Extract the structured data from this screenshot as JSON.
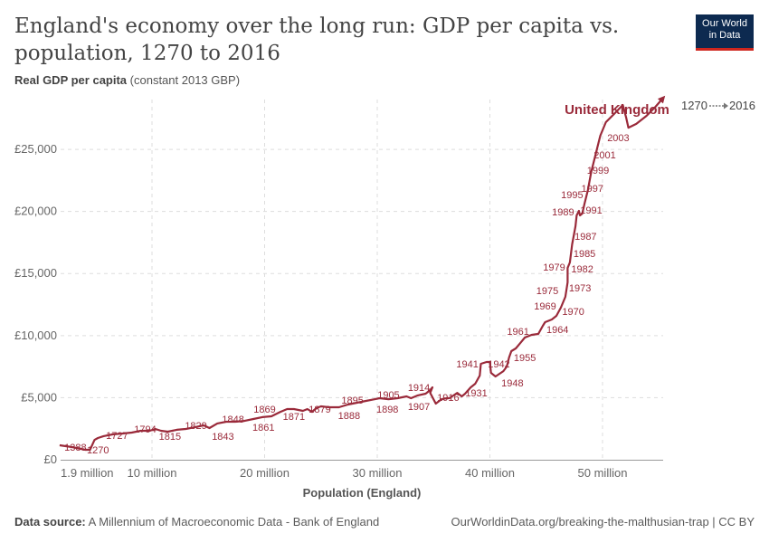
{
  "title": "England's economy over the long run: GDP per capita vs. population, 1270 to 2016",
  "subtitle_bold": "Real GDP per capita",
  "subtitle_rest": " (constant 2013 GBP)",
  "logo_line1": "Our World",
  "logo_line2": "in Data",
  "footer": {
    "source_label": "Data source:",
    "source": " A Millennium of Macroeconomic Data - Bank of England",
    "url": "OurWorldinData.org/breaking-the-malthusian-trap | CC BY"
  },
  "legend": {
    "start": "1270",
    "end": "2016"
  },
  "chart_data": {
    "type": "line",
    "title": "England's economy over the long run: GDP per capita vs. population, 1270 to 2016",
    "xlabel": "Population (England)",
    "ylabel": "Real GDP per capita (constant 2013 GBP)",
    "xlim": [
      1.9,
      56
    ],
    "ylim": [
      0,
      28000
    ],
    "x_ticks": [
      {
        "v": 1.9,
        "label": "1.9 million"
      },
      {
        "v": 10,
        "label": "10 million"
      },
      {
        "v": 20,
        "label": "20 million"
      },
      {
        "v": 30,
        "label": "30 million"
      },
      {
        "v": 40,
        "label": "40 million"
      },
      {
        "v": 50,
        "label": "50 million"
      }
    ],
    "y_ticks": [
      {
        "v": 0,
        "label": "£0"
      },
      {
        "v": 5000,
        "label": "£5,000"
      },
      {
        "v": 10000,
        "label": "£10,000"
      },
      {
        "v": 15000,
        "label": "£15,000"
      },
      {
        "v": 20000,
        "label": "£20,000"
      },
      {
        "v": 25000,
        "label": "£25,000"
      }
    ],
    "grid": true,
    "series": [
      {
        "name": "United Kingdom",
        "color": "#9a2a3a",
        "points": [
          [
            1.8,
            1170
          ],
          [
            2.9,
            1020
          ],
          [
            4.1,
            800
          ],
          [
            4.5,
            800
          ],
          [
            4.9,
            1600
          ],
          [
            5.2,
            1750
          ],
          [
            5.7,
            1900
          ],
          [
            6.5,
            2040
          ],
          [
            7.3,
            2110
          ],
          [
            8.2,
            2190
          ],
          [
            9.0,
            2330
          ],
          [
            9.8,
            2330
          ],
          [
            10.3,
            2480
          ],
          [
            10.8,
            2330
          ],
          [
            11.4,
            2260
          ],
          [
            12.2,
            2410
          ],
          [
            13.0,
            2480
          ],
          [
            13.8,
            2620
          ],
          [
            14.6,
            2770
          ],
          [
            15.1,
            2550
          ],
          [
            15.8,
            2920
          ],
          [
            16.6,
            3060
          ],
          [
            17.4,
            3060
          ],
          [
            18.2,
            3130
          ],
          [
            19.0,
            3280
          ],
          [
            19.8,
            3430
          ],
          [
            20.6,
            3500
          ],
          [
            21.4,
            3860
          ],
          [
            22.0,
            4080
          ],
          [
            22.6,
            4080
          ],
          [
            23.4,
            3940
          ],
          [
            23.8,
            4080
          ],
          [
            24.2,
            3860
          ],
          [
            24.6,
            4160
          ],
          [
            25.0,
            4300
          ],
          [
            25.7,
            4230
          ],
          [
            26.6,
            4230
          ],
          [
            27.4,
            4450
          ],
          [
            28.2,
            4590
          ],
          [
            29.0,
            4740
          ],
          [
            29.8,
            4880
          ],
          [
            30.2,
            4960
          ],
          [
            31.0,
            4880
          ],
          [
            31.8,
            4960
          ],
          [
            32.6,
            5100
          ],
          [
            33.0,
            4960
          ],
          [
            33.6,
            5180
          ],
          [
            34.3,
            5320
          ],
          [
            34.7,
            5610
          ],
          [
            34.9,
            5830
          ],
          [
            34.7,
            5390
          ],
          [
            35.2,
            4520
          ],
          [
            35.7,
            4880
          ],
          [
            36.2,
            4960
          ],
          [
            36.4,
            4960
          ],
          [
            37.1,
            5390
          ],
          [
            37.5,
            5100
          ],
          [
            37.8,
            5320
          ],
          [
            38.3,
            5830
          ],
          [
            38.7,
            6120
          ],
          [
            39.1,
            6780
          ],
          [
            39.2,
            7730
          ],
          [
            39.7,
            7870
          ],
          [
            40.0,
            7870
          ],
          [
            40.1,
            7000
          ],
          [
            40.5,
            6710
          ],
          [
            41.2,
            7140
          ],
          [
            41.5,
            7510
          ],
          [
            41.7,
            8240
          ],
          [
            41.9,
            8750
          ],
          [
            42.3,
            8970
          ],
          [
            42.7,
            9400
          ],
          [
            43.1,
            9840
          ],
          [
            43.7,
            10060
          ],
          [
            44.3,
            10130
          ],
          [
            44.7,
            10790
          ],
          [
            44.9,
            11080
          ],
          [
            45.5,
            11300
          ],
          [
            45.9,
            11590
          ],
          [
            46.3,
            12250
          ],
          [
            46.7,
            13120
          ],
          [
            46.9,
            14290
          ],
          [
            46.9,
            15450
          ],
          [
            47.1,
            15890
          ],
          [
            47.3,
            17350
          ],
          [
            47.6,
            18810
          ],
          [
            47.7,
            19680
          ],
          [
            47.9,
            20050
          ],
          [
            48.0,
            19680
          ],
          [
            48.2,
            19830
          ],
          [
            48.4,
            20630
          ],
          [
            48.7,
            21720
          ],
          [
            49.0,
            23180
          ],
          [
            49.4,
            24640
          ],
          [
            49.8,
            26100
          ],
          [
            50.3,
            27190
          ],
          [
            51.1,
            27920
          ],
          [
            51.8,
            28580
          ],
          [
            52.1,
            27560
          ],
          [
            52.3,
            26750
          ],
          [
            53.0,
            27050
          ],
          [
            53.9,
            27700
          ],
          [
            54.7,
            28430
          ],
          [
            55.4,
            29160
          ]
        ]
      }
    ],
    "year_labels": [
      {
        "year": "1388",
        "pop": 3.2,
        "gdp": 1020
      },
      {
        "year": "1270",
        "pop": 5.2,
        "gdp": 800
      },
      {
        "year": "1727",
        "pop": 6.9,
        "gdp": 1970
      },
      {
        "year": "1794",
        "pop": 9.4,
        "gdp": 2480
      },
      {
        "year": "1815",
        "pop": 11.6,
        "gdp": 1900
      },
      {
        "year": "1829",
        "pop": 13.9,
        "gdp": 2770
      },
      {
        "year": "1843",
        "pop": 16.3,
        "gdp": 1900
      },
      {
        "year": "1848",
        "pop": 17.2,
        "gdp": 3280
      },
      {
        "year": "1861",
        "pop": 19.9,
        "gdp": 2620
      },
      {
        "year": "1869",
        "pop": 20.0,
        "gdp": 4080
      },
      {
        "year": "1871",
        "pop": 22.6,
        "gdp": 3500
      },
      {
        "year": "1879",
        "pop": 24.9,
        "gdp": 4080
      },
      {
        "year": "1888",
        "pop": 27.5,
        "gdp": 3570
      },
      {
        "year": "1895",
        "pop": 27.8,
        "gdp": 4810
      },
      {
        "year": "1898",
        "pop": 30.9,
        "gdp": 4080
      },
      {
        "year": "1905",
        "pop": 31.0,
        "gdp": 5250
      },
      {
        "year": "1907",
        "pop": 33.7,
        "gdp": 4300
      },
      {
        "year": "1914",
        "pop": 33.7,
        "gdp": 5830
      },
      {
        "year": "1916",
        "pop": 36.3,
        "gdp": 5030
      },
      {
        "year": "1931",
        "pop": 38.8,
        "gdp": 5390
      },
      {
        "year": "1941",
        "pop": 38.0,
        "gdp": 7730
      },
      {
        "year": "1942",
        "pop": 40.8,
        "gdp": 7730
      },
      {
        "year": "1948",
        "pop": 42.0,
        "gdp": 6200
      },
      {
        "year": "1955",
        "pop": 43.1,
        "gdp": 8240
      },
      {
        "year": "1961",
        "pop": 42.5,
        "gdp": 10350
      },
      {
        "year": "1964",
        "pop": 46.0,
        "gdp": 10500
      },
      {
        "year": "1969",
        "pop": 44.9,
        "gdp": 12390
      },
      {
        "year": "1970",
        "pop": 47.4,
        "gdp": 11960
      },
      {
        "year": "1973",
        "pop": 48.0,
        "gdp": 13850
      },
      {
        "year": "1975",
        "pop": 45.1,
        "gdp": 13630
      },
      {
        "year": "1979",
        "pop": 45.7,
        "gdp": 15530
      },
      {
        "year": "1982",
        "pop": 48.2,
        "gdp": 15380
      },
      {
        "year": "1985",
        "pop": 48.4,
        "gdp": 16620
      },
      {
        "year": "1987",
        "pop": 48.5,
        "gdp": 18010
      },
      {
        "year": "1989",
        "pop": 46.5,
        "gdp": 19970
      },
      {
        "year": "1991",
        "pop": 49.0,
        "gdp": 20120
      },
      {
        "year": "1995",
        "pop": 47.3,
        "gdp": 21360
      },
      {
        "year": "1997",
        "pop": 49.1,
        "gdp": 21870
      },
      {
        "year": "1999",
        "pop": 49.6,
        "gdp": 23330
      },
      {
        "year": "2001",
        "pop": 50.2,
        "gdp": 24570
      },
      {
        "year": "2003",
        "pop": 51.4,
        "gdp": 25950
      }
    ]
  }
}
